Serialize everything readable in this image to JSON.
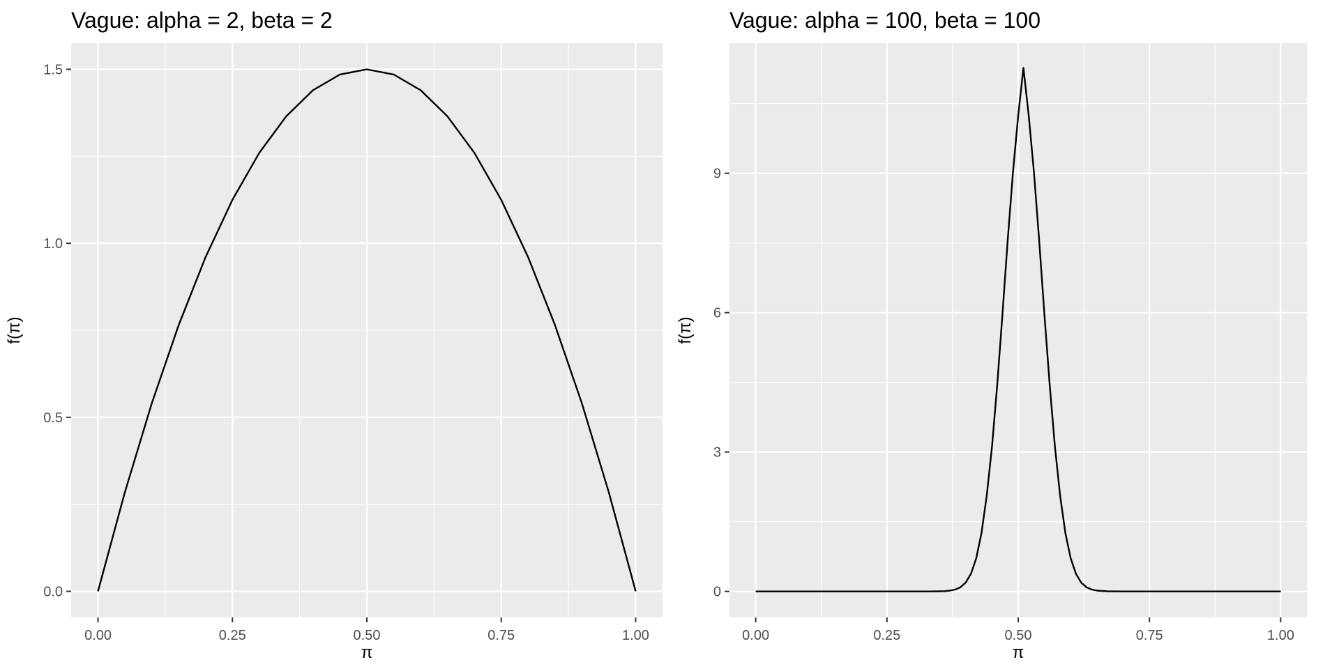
{
  "chart_data": [
    {
      "type": "line",
      "title": "Vague: alpha = 2, beta = 2",
      "xlabel": "π",
      "ylabel": "f(π)",
      "xlim": [
        -0.05,
        1.05
      ],
      "ylim": [
        -0.075,
        1.575
      ],
      "xticks": [
        0,
        0.25,
        0.5,
        0.75,
        1
      ],
      "xtick_labels": [
        "0.00",
        "0.25",
        "0.50",
        "0.75",
        "1.00"
      ],
      "yticks": [
        0,
        0.5,
        1.0,
        1.5
      ],
      "ytick_labels": [
        "0.0",
        "0.5",
        "1.0",
        "1.5"
      ],
      "grid": true,
      "series": [
        {
          "color": "#000000",
          "x": [
            0,
            0.05,
            0.1,
            0.15,
            0.2,
            0.25,
            0.3,
            0.35,
            0.4,
            0.45,
            0.5,
            0.55,
            0.6,
            0.65,
            0.7,
            0.75,
            0.8,
            0.85,
            0.9,
            0.95,
            1
          ],
          "y": [
            0,
            0.285,
            0.54,
            0.765,
            0.96,
            1.125,
            1.26,
            1.365,
            1.44,
            1.485,
            1.5,
            1.485,
            1.44,
            1.365,
            1.26,
            1.125,
            0.96,
            0.765,
            0.54,
            0.285,
            0
          ]
        }
      ]
    },
    {
      "type": "line",
      "title": "Vague: alpha = 100, beta = 100",
      "xlabel": "π",
      "ylabel": "f(π)",
      "xlim": [
        -0.05,
        1.05
      ],
      "ylim": [
        -0.56,
        11.8
      ],
      "xticks": [
        0,
        0.25,
        0.5,
        0.75,
        1
      ],
      "xtick_labels": [
        "0.00",
        "0.25",
        "0.50",
        "0.75",
        "1.00"
      ],
      "yticks": [
        0,
        3,
        6,
        9
      ],
      "ytick_labels": [
        "0",
        "3",
        "6",
        "9"
      ],
      "grid": true,
      "series": [
        {
          "color": "#000000",
          "x": [
            0,
            0.05,
            0.1,
            0.15,
            0.2,
            0.25,
            0.3,
            0.33,
            0.35,
            0.36,
            0.37,
            0.38,
            0.39,
            0.4,
            0.41,
            0.42,
            0.43,
            0.44,
            0.45,
            0.46,
            0.47,
            0.48,
            0.49,
            0.5,
            0.51,
            0.52,
            0.53,
            0.54,
            0.55,
            0.56,
            0.57,
            0.58,
            0.59,
            0.6,
            0.61,
            0.62,
            0.63,
            0.64,
            0.65,
            0.67,
            0.7,
            0.75,
            0.8,
            0.85,
            0.9,
            0.95,
            1
          ],
          "y": [
            0,
            0,
            0,
            0,
            0,
            0,
            0,
            0,
            0.002,
            0.006,
            0.017,
            0.04,
            0.09,
            0.19,
            0.38,
            0.71,
            1.25,
            2.05,
            3.11,
            4.44,
            5.96,
            7.55,
            9.02,
            10.24,
            11.27,
            10.24,
            9.02,
            7.55,
            5.96,
            4.44,
            3.11,
            2.05,
            1.25,
            0.71,
            0.38,
            0.19,
            0.09,
            0.04,
            0.017,
            0.002,
            0,
            0,
            0,
            0,
            0,
            0,
            0
          ]
        }
      ]
    }
  ]
}
